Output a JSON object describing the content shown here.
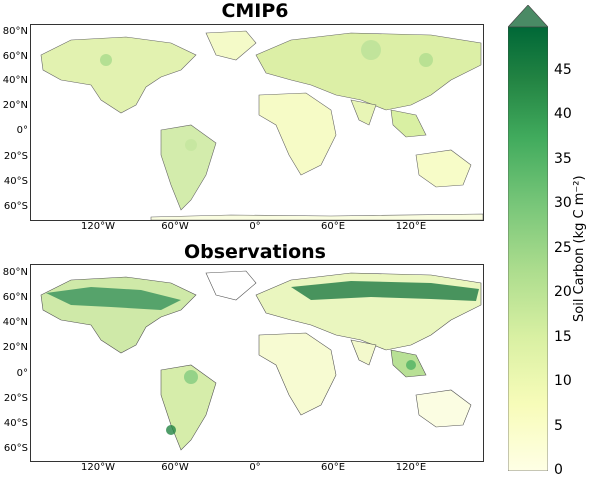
{
  "maps": [
    {
      "title": "CMIP6"
    },
    {
      "title": "Observations"
    }
  ],
  "lat_labels": [
    "80°N",
    "60°N",
    "40°N",
    "20°N",
    "0°",
    "20°S",
    "40°S",
    "60°S"
  ],
  "lon_labels": [
    "120°W",
    "60°W",
    "0°",
    "60°E",
    "120°E"
  ],
  "colorbar": {
    "label": "Soil Carbon (kg C m⁻²)",
    "ticks": [
      "0",
      "5",
      "10",
      "15",
      "20",
      "25",
      "30",
      "35",
      "40",
      "45"
    ],
    "min": 0,
    "max": 50,
    "extend": "max",
    "colors": [
      "#ffffe5",
      "#f7fcb9",
      "#d9f0a3",
      "#addd8e",
      "#78c679",
      "#41ab5d",
      "#238443",
      "#006837"
    ]
  }
}
